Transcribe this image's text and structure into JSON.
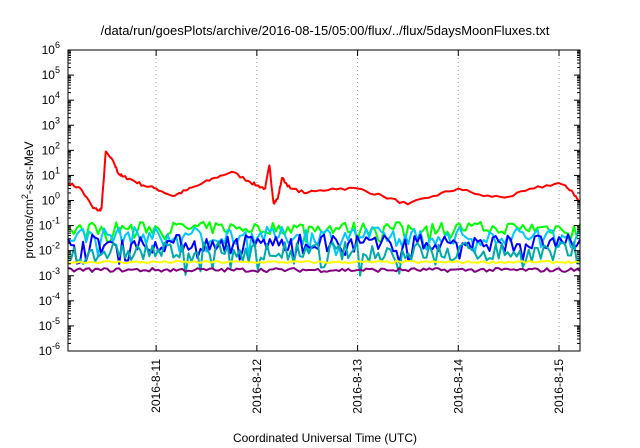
{
  "chart_data": {
    "type": "line",
    "title": "/data/run/goesPlots/archive/2016-08-15/05:00/flux/../flux/5daysMoonFluxes.txt",
    "xlabel": "Coordinated Universal Time (UTC)",
    "ylabel_parts": [
      "protons/cm",
      "2",
      "-s-sr-MeV"
    ],
    "yscale": "log",
    "ylim_exponents": [
      -6,
      6
    ],
    "y_tick_base": "10",
    "y_tick_exponents": [
      "6",
      "5",
      "4",
      "3",
      "2",
      "1",
      "0",
      "-1",
      "-2",
      "-3",
      "-4",
      "-5",
      "-6"
    ],
    "xlim": [
      "2016-08-10 03:00",
      "2016-08-15 05:00"
    ],
    "x_tick_labels": [
      "2016-8-11",
      "2016-8-12",
      "2016-8-13",
      "2016-8-14",
      "2016-8-15"
    ],
    "x_tick_dates": [
      "2016-08-11 00:00",
      "2016-08-12 00:00",
      "2016-08-13 00:00",
      "2016-08-14 00:00",
      "2016-08-15 00:00"
    ],
    "grid": true,
    "series": [
      {
        "color": "#ff0000",
        "style": "solid",
        "x": [
          "2016-08-10 03:00",
          "2016-08-10 06:00",
          "2016-08-10 09:00",
          "2016-08-10 10:30",
          "2016-08-10 11:00",
          "2016-08-10 12:00",
          "2016-08-10 14:00",
          "2016-08-10 15:00",
          "2016-08-10 16:00",
          "2016-08-10 18:00",
          "2016-08-10 21:00",
          "2016-08-11 00:00",
          "2016-08-11 04:00",
          "2016-08-11 07:00",
          "2016-08-11 10:00",
          "2016-08-11 14:00",
          "2016-08-11 18:00",
          "2016-08-11 22:00",
          "2016-08-12 00:00",
          "2016-08-12 02:00",
          "2016-08-12 03:00",
          "2016-08-12 04:00",
          "2016-08-12 05:00",
          "2016-08-12 06:00",
          "2016-08-12 08:00",
          "2016-08-12 12:00",
          "2016-08-12 18:00",
          "2016-08-13 00:00",
          "2016-08-13 06:00",
          "2016-08-13 12:00",
          "2016-08-13 18:00",
          "2016-08-14 00:00",
          "2016-08-14 06:00",
          "2016-08-14 12:00",
          "2016-08-14 18:00",
          "2016-08-15 00:00",
          "2016-08-15 03:00",
          "2016-08-15 05:00"
        ],
        "y": [
          5,
          3,
          0.5,
          0.4,
          0.5,
          90,
          30,
          12,
          9,
          7,
          4,
          3,
          1.5,
          2.5,
          4,
          8,
          14,
          6,
          4,
          3,
          25,
          0.8,
          1.2,
          8,
          3,
          2,
          3,
          3,
          1.5,
          0.7,
          1.5,
          3,
          1.5,
          1.4,
          3,
          5,
          2.5,
          0.8
        ]
      },
      {
        "color": "#00ff00",
        "style": "solid",
        "level": 0.08
      },
      {
        "color": "#00c8ff",
        "style": "solid",
        "level": 0.04
      },
      {
        "color": "#0000ff",
        "style": "solid",
        "level": 0.02
      },
      {
        "color": "#00aaaa",
        "style": "solid",
        "level": 0.009
      },
      {
        "color": "#ffff00",
        "style": "solid",
        "level": 0.0035
      },
      {
        "color": "#800080",
        "style": "solid",
        "level": 0.0017
      }
    ]
  }
}
